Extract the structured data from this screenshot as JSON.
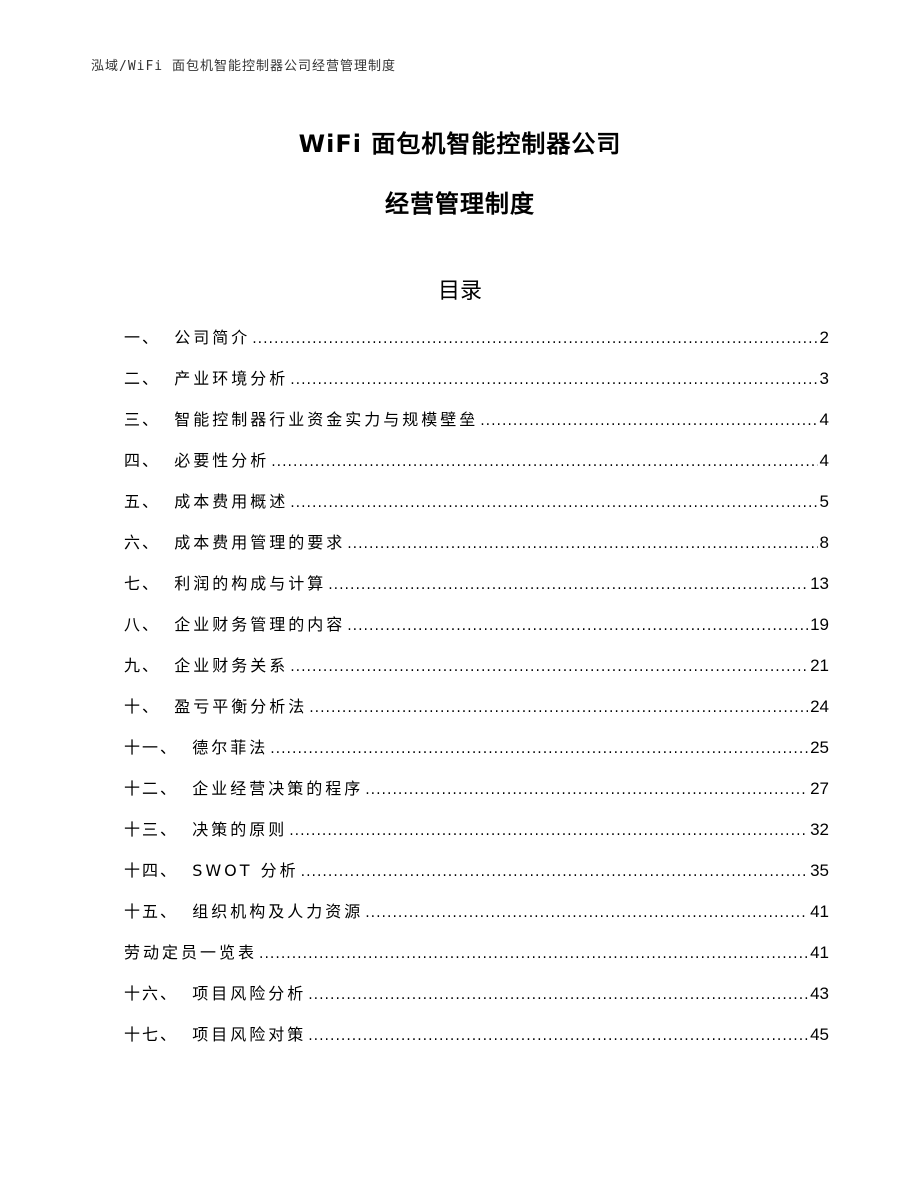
{
  "header": "泓域/WiFi 面包机智能控制器公司经营管理制度",
  "title_line1": "WiFi 面包机智能控制器公司",
  "title_line2": "经营管理制度",
  "toc_title": "目录",
  "toc": [
    {
      "num": "一、  ",
      "label": "公司简介",
      "page": "2"
    },
    {
      "num": "二、  ",
      "label": "产业环境分析",
      "page": "3"
    },
    {
      "num": "三、  ",
      "label": "智能控制器行业资金实力与规模壁垒",
      "page": "4"
    },
    {
      "num": "四、  ",
      "label": "必要性分析",
      "page": "4"
    },
    {
      "num": "五、  ",
      "label": "成本费用概述",
      "page": "5"
    },
    {
      "num": "六、  ",
      "label": "成本费用管理的要求",
      "page": "8"
    },
    {
      "num": "七、  ",
      "label": "利润的构成与计算",
      "page": "13"
    },
    {
      "num": "八、  ",
      "label": "企业财务管理的内容",
      "page": "19"
    },
    {
      "num": "九、  ",
      "label": "企业财务关系",
      "page": "21"
    },
    {
      "num": "十、  ",
      "label": "盈亏平衡分析法",
      "page": "24"
    },
    {
      "num": "十一、  ",
      "label": "德尔菲法",
      "page": "25"
    },
    {
      "num": "十二、  ",
      "label": "企业经营决策的程序",
      "page": "27"
    },
    {
      "num": "十三、  ",
      "label": "决策的原则",
      "page": "32"
    },
    {
      "num": "十四、  ",
      "label": "SWOT 分析",
      "page": "35"
    },
    {
      "num": "十五、  ",
      "label": "组织机构及人力资源",
      "page": "41"
    },
    {
      "num": "",
      "label": "劳动定员一览表",
      "page": "41"
    },
    {
      "num": "十六、  ",
      "label": "项目风险分析",
      "page": "43"
    },
    {
      "num": "十七、  ",
      "label": "项目风险对策",
      "page": "45"
    }
  ]
}
